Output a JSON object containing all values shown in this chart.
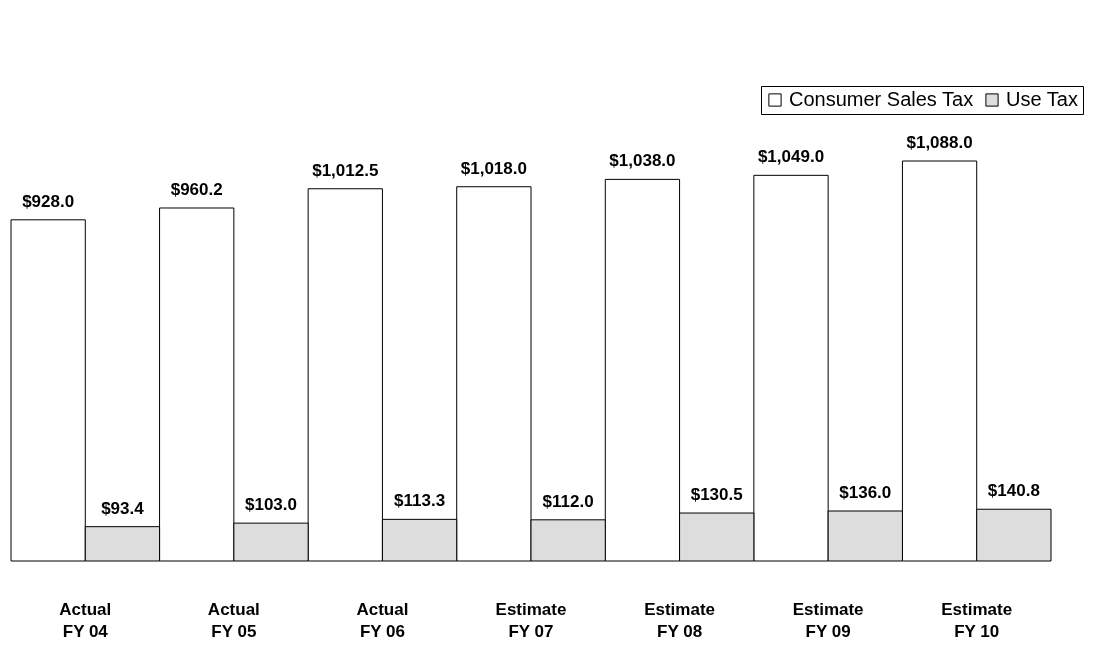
{
  "chart_data": {
    "type": "bar",
    "categories": [
      "Actual\nFY 04",
      "Actual\nFY 05",
      "Actual\nFY 06",
      "Estimate\nFY 07",
      "Estimate\nFY 08",
      "Estimate\nFY 09",
      "Estimate\nFY 10"
    ],
    "series": [
      {
        "name": "Consumer Sales Tax",
        "color": "#ffffff",
        "values": [
          928.0,
          960.2,
          1012.5,
          1018.0,
          1038.0,
          1049.0,
          1088.0
        ],
        "value_labels": [
          "$928.0",
          "$960.2",
          "$1,012.5",
          "$1,018.0",
          "$1,038.0",
          "$1,049.0",
          "$1,088.0"
        ]
      },
      {
        "name": "Use Tax",
        "color": "#dddddd",
        "values": [
          93.4,
          103.0,
          113.3,
          112.0,
          130.5,
          136.0,
          140.8
        ],
        "value_labels": [
          "$93.4",
          "$103.0",
          "$113.3",
          "$112.0",
          "$130.5",
          "$136.0",
          "$140.8"
        ]
      }
    ],
    "legend": "top right",
    "grid": false
  }
}
